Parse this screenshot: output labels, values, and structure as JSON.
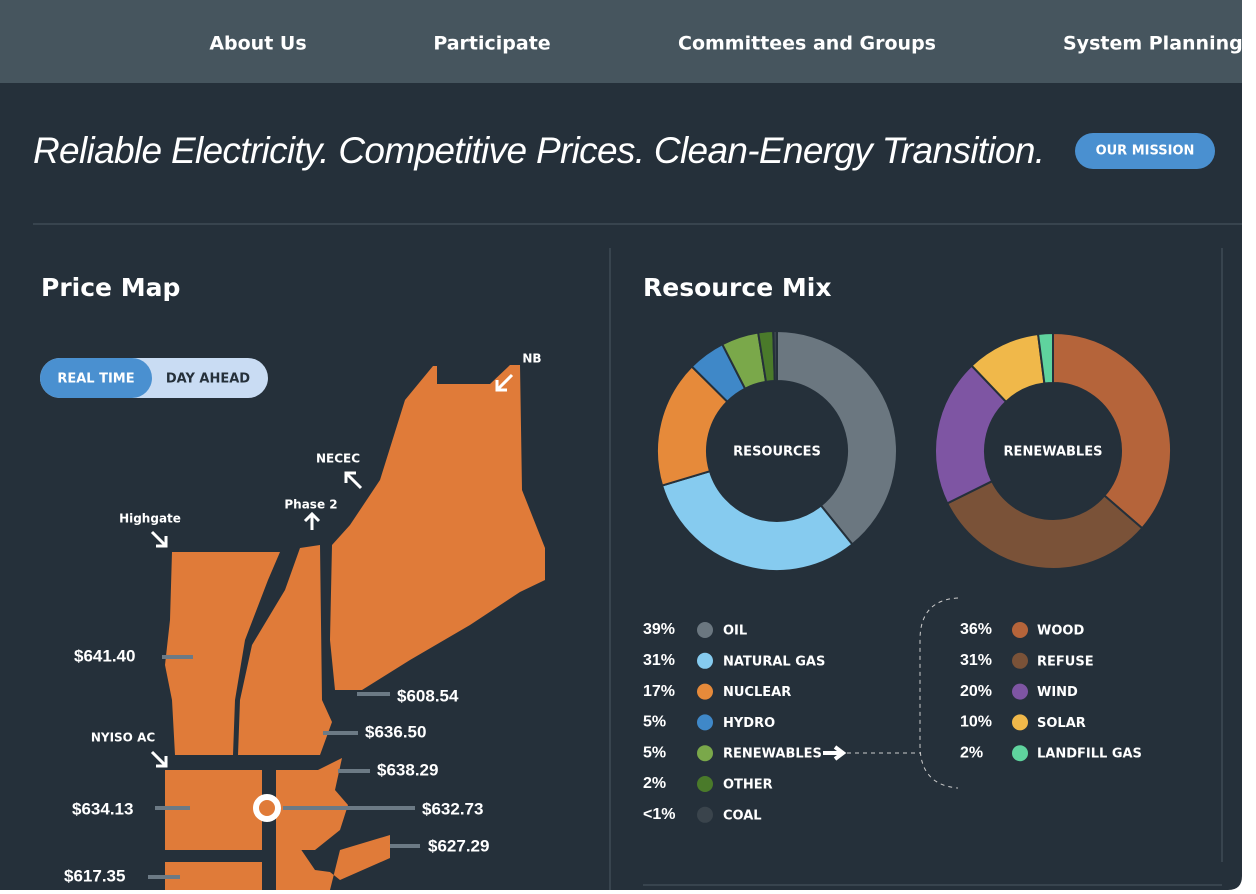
{
  "nav": {
    "items": [
      "About Us",
      "Participate",
      "Committees and Groups",
      "System Planning"
    ]
  },
  "hero": {
    "tagline": "Reliable Electricity. Competitive Prices. Clean-Energy Transition.",
    "button": "OUR MISSION"
  },
  "price_map": {
    "title": "Price Map",
    "toggle": [
      "REAL TIME",
      "DAY AHEAD"
    ],
    "interfaces": [
      "NB",
      "NECEC",
      "Phase 2",
      "Highgate",
      "NYISO AC"
    ],
    "prices": [
      "$641.40",
      "$608.54",
      "$636.50",
      "$638.29",
      "$634.13",
      "$632.73",
      "$627.29",
      "$617.35"
    ]
  },
  "resource_mix": {
    "title": "Resource Mix"
  },
  "chart_data": [
    {
      "type": "pie",
      "title": "RESOURCES",
      "categories": [
        "OIL",
        "NATURAL GAS",
        "NUCLEAR",
        "HYDRO",
        "RENEWABLES",
        "OTHER",
        "COAL"
      ],
      "values": [
        39,
        31,
        17,
        5,
        5,
        2,
        0.5
      ],
      "value_labels": [
        "39%",
        "31%",
        "17%",
        "5%",
        "5%",
        "2%",
        "<1%"
      ],
      "colors": [
        "#6b7780",
        "#86cbef",
        "#e68a3a",
        "#3f88c8",
        "#7aa84a",
        "#4a7a2a",
        "#3a444c"
      ]
    },
    {
      "type": "pie",
      "title": "RENEWABLES",
      "categories": [
        "WOOD",
        "REFUSE",
        "WIND",
        "SOLAR",
        "LANDFILL GAS"
      ],
      "values": [
        36,
        31,
        20,
        10,
        2
      ],
      "value_labels": [
        "36%",
        "31%",
        "20%",
        "10%",
        "2%"
      ],
      "colors": [
        "#b5643a",
        "#7a5238",
        "#7e55a3",
        "#f0b84a",
        "#5fd39e"
      ]
    }
  ]
}
